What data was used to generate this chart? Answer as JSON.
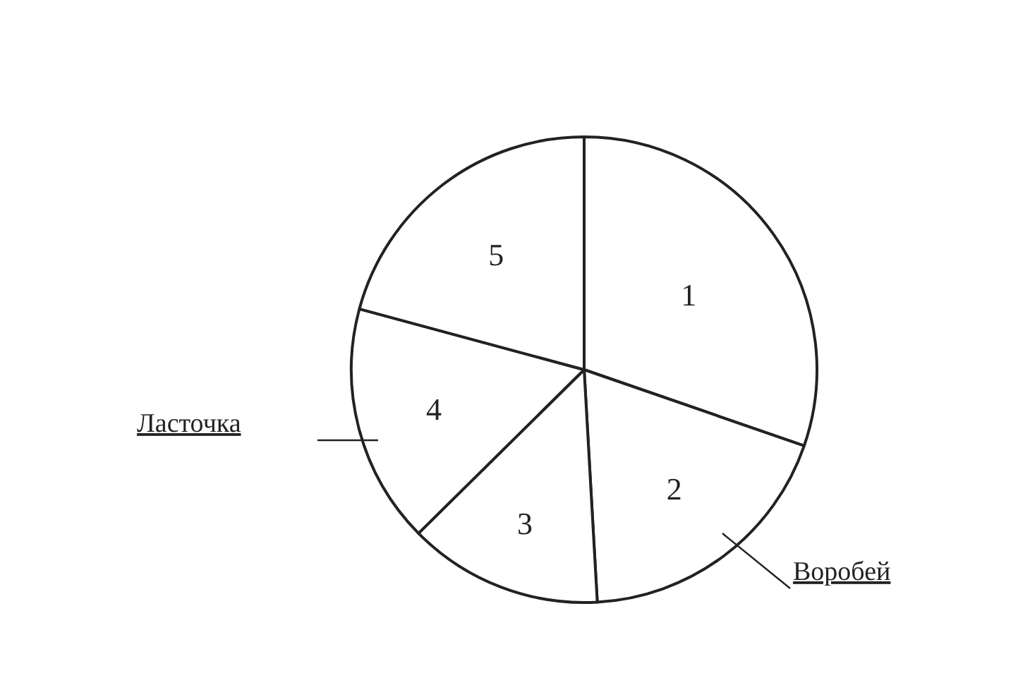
{
  "chart_data": {
    "type": "pie",
    "categories": [
      "1",
      "2",
      "3",
      "4",
      "5"
    ],
    "values": [
      30.3,
      18.8,
      13.5,
      16.6,
      20.8
    ],
    "colors": [
      "#ffffff",
      "#ffffff",
      "#ffffff",
      "#ffffff",
      "#ffffff"
    ],
    "annotations": [
      "Ласточка",
      "Воробей"
    ]
  }
}
